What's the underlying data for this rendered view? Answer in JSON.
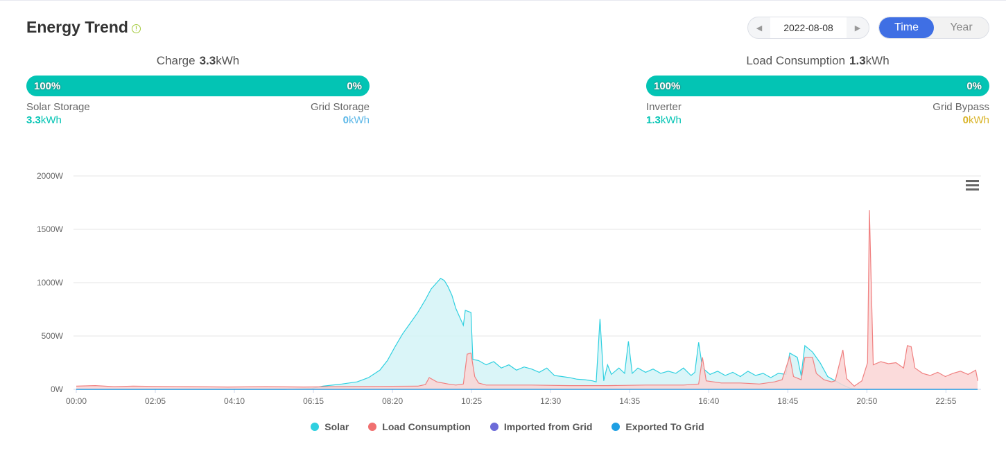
{
  "header": {
    "title": "Energy Trend",
    "info_icon": "info-circle-icon"
  },
  "date_picker": {
    "value": "2022-08-08",
    "prev_icon": "skip-back-icon",
    "next_icon": "skip-forward-icon"
  },
  "period_toggle": {
    "options": [
      "Time",
      "Year"
    ],
    "active": "Time"
  },
  "charge_panel": {
    "label": "Charge",
    "value": "3.3",
    "unit": "kWh",
    "bar_left": "100%",
    "bar_right": "0%",
    "bar_fill": 1.0,
    "left_label": "Solar Storage",
    "left_value": "3.3",
    "left_unit": "kWh",
    "left_color": "#03c4b4",
    "right_label": "Grid Storage",
    "right_value": "0",
    "right_unit": "kWh",
    "right_color": "#5db8e8"
  },
  "load_panel": {
    "label": "Load Consumption",
    "value": "1.3",
    "unit": "kWh",
    "bar_left": "100%",
    "bar_right": "0%",
    "bar_fill": 1.0,
    "left_label": "Inverter",
    "left_value": "1.3",
    "left_unit": "kWh",
    "left_color": "#03c4b4",
    "right_label": "Grid Bypass",
    "right_value": "0",
    "right_unit": "kWh",
    "right_color": "#d9b326"
  },
  "chart_data": {
    "type": "area",
    "y_ticks": [
      "0W",
      "500W",
      "1000W",
      "1500W",
      "2000W"
    ],
    "ylim": [
      0,
      2000
    ],
    "x_ticks": [
      "00:00",
      "02:05",
      "04:10",
      "06:15",
      "08:20",
      "10:25",
      "12:30",
      "14:35",
      "16:40",
      "18:45",
      "20:50",
      "22:55"
    ],
    "x_unit": "hours",
    "grid": true,
    "menu_icon": "hamburger-menu-icon",
    "series": [
      {
        "name": "Solar",
        "color": "#2fd0e0",
        "fill": "#d3f3f7",
        "points": [
          [
            0,
            0
          ],
          [
            5.5,
            0
          ],
          [
            6.2,
            8
          ],
          [
            6.5,
            30
          ],
          [
            7,
            50
          ],
          [
            7.4,
            70
          ],
          [
            7.7,
            110
          ],
          [
            8,
            180
          ],
          [
            8.2,
            270
          ],
          [
            8.4,
            400
          ],
          [
            8.6,
            520
          ],
          [
            8.8,
            620
          ],
          [
            9,
            720
          ],
          [
            9.2,
            840
          ],
          [
            9.35,
            940
          ],
          [
            9.5,
            1000
          ],
          [
            9.6,
            1040
          ],
          [
            9.7,
            1020
          ],
          [
            9.8,
            960
          ],
          [
            9.9,
            880
          ],
          [
            10,
            760
          ],
          [
            10.1,
            680
          ],
          [
            10.2,
            600
          ],
          [
            10.25,
            740
          ],
          [
            10.4,
            720
          ],
          [
            10.45,
            280
          ],
          [
            10.6,
            270
          ],
          [
            10.8,
            230
          ],
          [
            11,
            260
          ],
          [
            11.2,
            200
          ],
          [
            11.4,
            230
          ],
          [
            11.6,
            180
          ],
          [
            11.8,
            210
          ],
          [
            12,
            190
          ],
          [
            12.2,
            160
          ],
          [
            12.4,
            200
          ],
          [
            12.6,
            130
          ],
          [
            12.8,
            120
          ],
          [
            13,
            110
          ],
          [
            13.2,
            95
          ],
          [
            13.4,
            90
          ],
          [
            13.6,
            80
          ],
          [
            13.7,
            70
          ],
          [
            13.8,
            660
          ],
          [
            13.9,
            80
          ],
          [
            14,
            230
          ],
          [
            14.1,
            140
          ],
          [
            14.3,
            200
          ],
          [
            14.45,
            150
          ],
          [
            14.55,
            450
          ],
          [
            14.65,
            150
          ],
          [
            14.8,
            200
          ],
          [
            15,
            160
          ],
          [
            15.2,
            190
          ],
          [
            15.4,
            150
          ],
          [
            15.6,
            170
          ],
          [
            15.8,
            150
          ],
          [
            16,
            200
          ],
          [
            16.2,
            130
          ],
          [
            16.3,
            160
          ],
          [
            16.4,
            440
          ],
          [
            16.5,
            200
          ],
          [
            16.7,
            140
          ],
          [
            16.9,
            170
          ],
          [
            17.1,
            130
          ],
          [
            17.3,
            160
          ],
          [
            17.5,
            120
          ],
          [
            17.7,
            170
          ],
          [
            17.9,
            130
          ],
          [
            18.1,
            150
          ],
          [
            18.3,
            110
          ],
          [
            18.5,
            150
          ],
          [
            18.7,
            140
          ],
          [
            18.8,
            340
          ],
          [
            19,
            300
          ],
          [
            19.1,
            130
          ],
          [
            19.2,
            410
          ],
          [
            19.4,
            350
          ],
          [
            19.6,
            250
          ],
          [
            19.8,
            120
          ],
          [
            20,
            80
          ],
          [
            20.2,
            40
          ],
          [
            20.4,
            10
          ],
          [
            20.6,
            0
          ],
          [
            24,
            0
          ]
        ]
      },
      {
        "name": "Load Consumption",
        "color": "#f08080",
        "fill": "#fad5d5",
        "points": [
          [
            0,
            30
          ],
          [
            0.5,
            35
          ],
          [
            1,
            25
          ],
          [
            1.5,
            30
          ],
          [
            2,
            28
          ],
          [
            3,
            25
          ],
          [
            4,
            22
          ],
          [
            5,
            25
          ],
          [
            6,
            22
          ],
          [
            7,
            25
          ],
          [
            8,
            28
          ],
          [
            9,
            30
          ],
          [
            9.2,
            45
          ],
          [
            9.3,
            110
          ],
          [
            9.5,
            70
          ],
          [
            9.8,
            50
          ],
          [
            10,
            40
          ],
          [
            10.2,
            50
          ],
          [
            10.3,
            330
          ],
          [
            10.4,
            340
          ],
          [
            10.5,
            120
          ],
          [
            10.6,
            60
          ],
          [
            10.8,
            40
          ],
          [
            11,
            40
          ],
          [
            12,
            40
          ],
          [
            13,
            35
          ],
          [
            14,
            35
          ],
          [
            15,
            40
          ],
          [
            16,
            40
          ],
          [
            16.4,
            50
          ],
          [
            16.5,
            300
          ],
          [
            16.6,
            80
          ],
          [
            17,
            60
          ],
          [
            17.5,
            60
          ],
          [
            18,
            50
          ],
          [
            18.4,
            70
          ],
          [
            18.6,
            90
          ],
          [
            18.8,
            310
          ],
          [
            18.9,
            120
          ],
          [
            19.1,
            90
          ],
          [
            19.2,
            300
          ],
          [
            19.4,
            300
          ],
          [
            19.5,
            150
          ],
          [
            19.7,
            90
          ],
          [
            19.9,
            70
          ],
          [
            20,
            80
          ],
          [
            20.2,
            370
          ],
          [
            20.3,
            100
          ],
          [
            20.5,
            30
          ],
          [
            20.7,
            80
          ],
          [
            20.85,
            250
          ],
          [
            20.9,
            1680
          ],
          [
            21,
            230
          ],
          [
            21.2,
            260
          ],
          [
            21.4,
            240
          ],
          [
            21.6,
            250
          ],
          [
            21.8,
            200
          ],
          [
            21.9,
            410
          ],
          [
            22,
            400
          ],
          [
            22.1,
            200
          ],
          [
            22.3,
            150
          ],
          [
            22.5,
            130
          ],
          [
            22.7,
            160
          ],
          [
            22.9,
            120
          ],
          [
            23.1,
            150
          ],
          [
            23.3,
            170
          ],
          [
            23.5,
            140
          ],
          [
            23.7,
            180
          ],
          [
            23.9,
            90
          ],
          [
            24,
            80
          ]
        ]
      },
      {
        "name": "Imported from Grid",
        "color": "#6c6bd8",
        "fill": "none",
        "points": [
          [
            0,
            0
          ],
          [
            24,
            0
          ]
        ]
      },
      {
        "name": "Exported To Grid",
        "color": "#1e9fe3",
        "fill": "none",
        "points": [
          [
            0,
            0
          ],
          [
            24,
            0
          ]
        ]
      }
    ]
  }
}
